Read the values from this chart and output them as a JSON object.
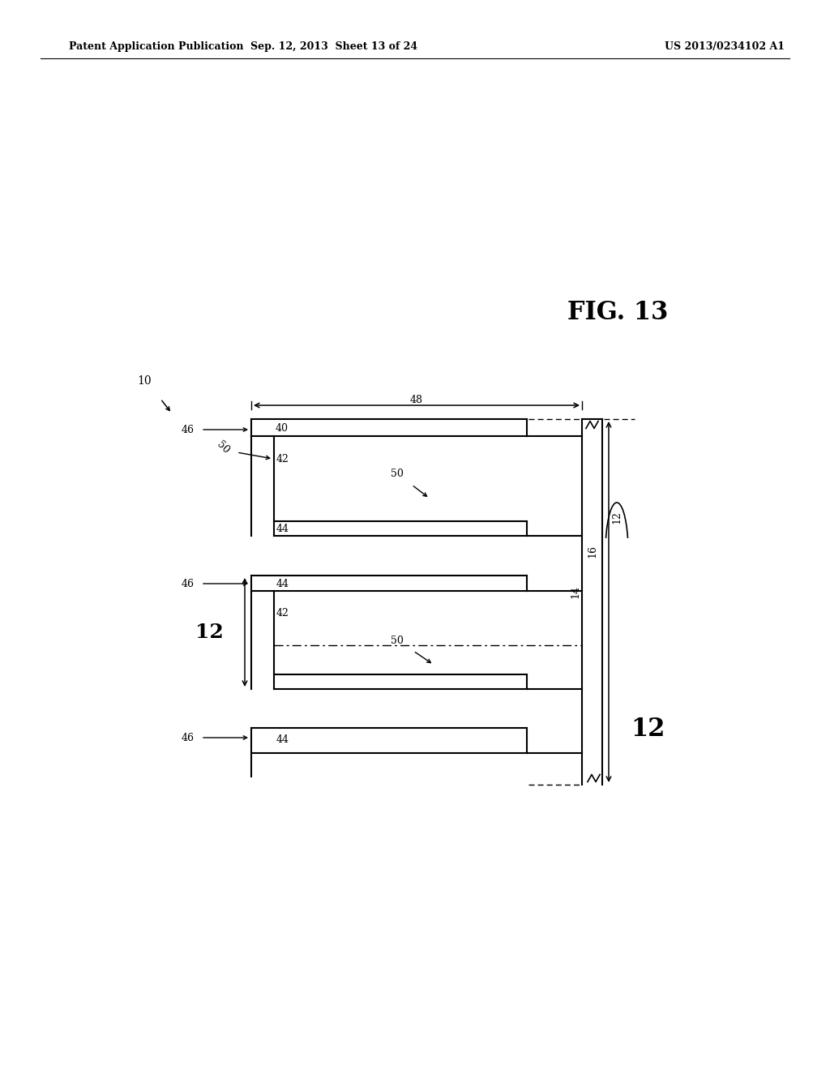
{
  "header_left": "Patent Application Publication",
  "header_mid": "Sep. 12, 2013  Sheet 13 of 24",
  "header_right": "US 2013/0234102 A1",
  "fig_label": "FIG. 13",
  "bg_color": "#ffffff",
  "label_10": "10",
  "label_12_sm": "12",
  "label_12_lg": "12",
  "label_14": "14",
  "label_16": "16",
  "label_40": "40",
  "label_42": "42",
  "label_44": "44",
  "label_46": "46",
  "label_48": "48",
  "label_50": "50"
}
